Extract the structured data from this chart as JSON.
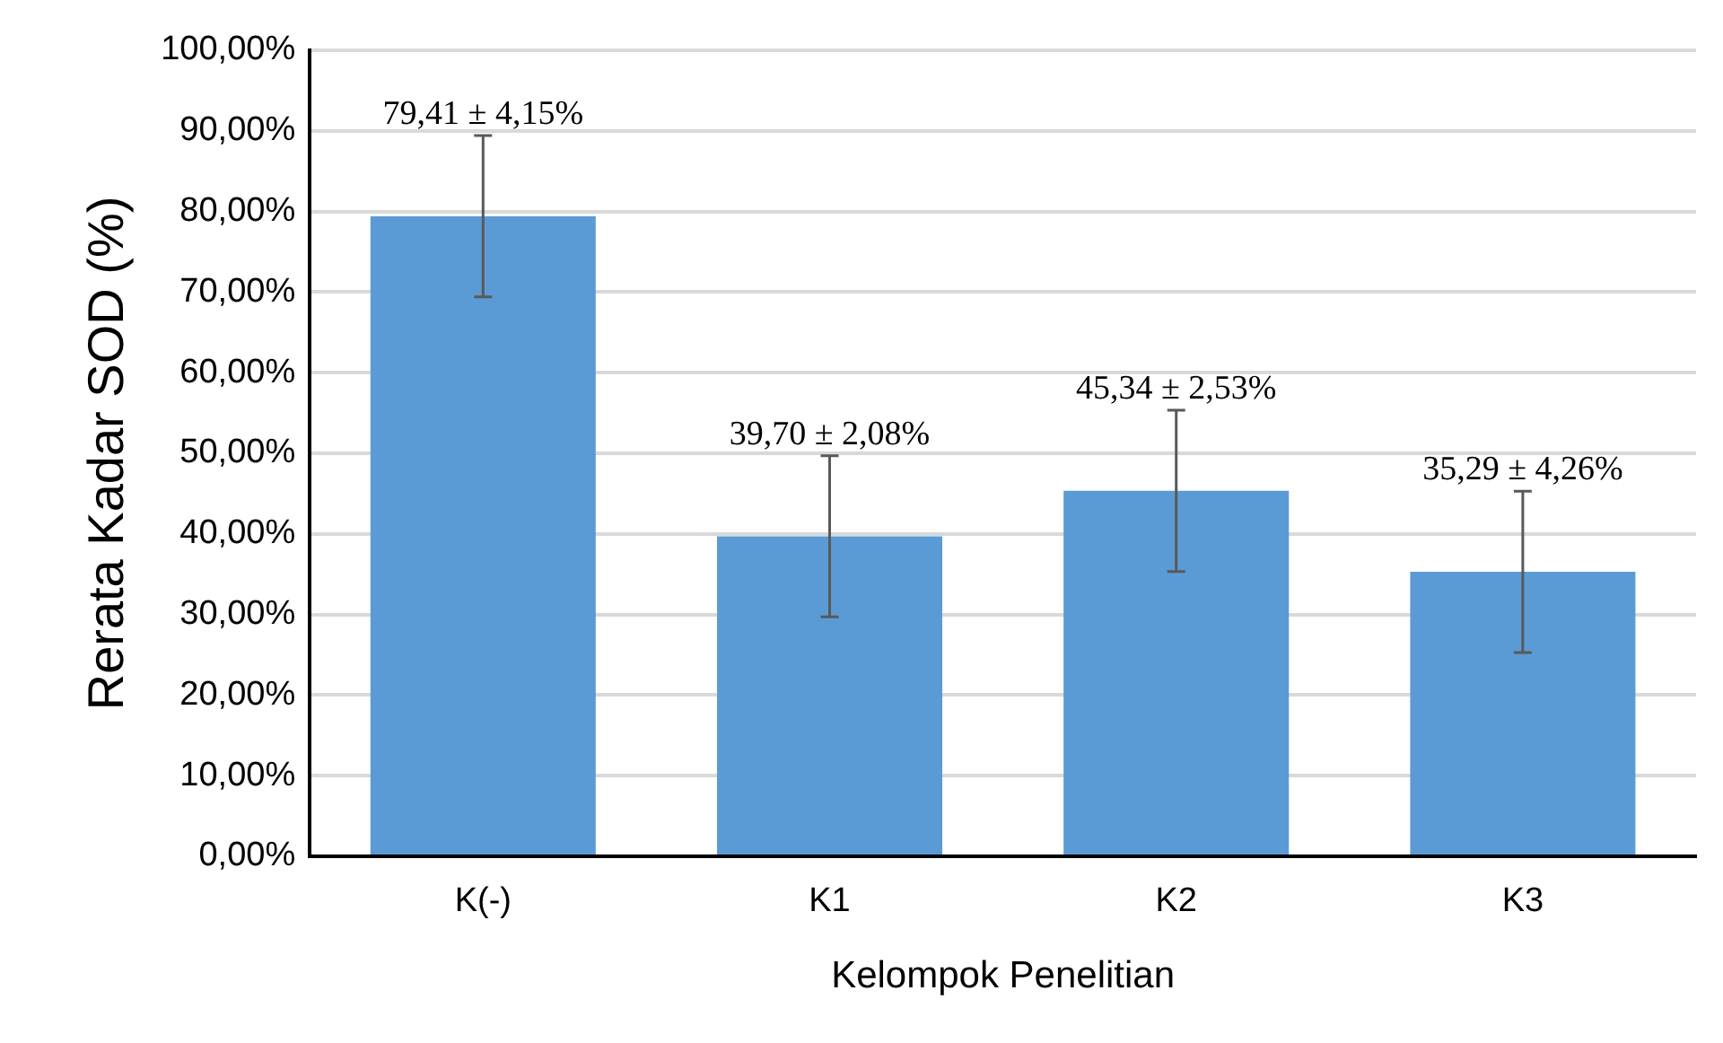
{
  "chart_data": {
    "type": "bar",
    "xlabel": "Kelompok Penelitian",
    "ylabel": "Rerata Kadar SOD (%)",
    "categories": [
      "K(-)",
      "K1",
      "K2",
      "K3"
    ],
    "values": [
      79.41,
      39.7,
      45.34,
      35.29
    ],
    "errors": [
      10,
      10,
      10,
      10
    ],
    "value_labels": [
      "79,41 ± 4,15%",
      "39,70 ± 2,08%",
      "45,34 ± 2,53%",
      "35,29 ± 4,26%"
    ],
    "color": "#5b9bd5",
    "ylim": [
      0,
      100
    ],
    "yticks": [
      {
        "value": 0,
        "label": "0,00%"
      },
      {
        "value": 10,
        "label": "10,00%"
      },
      {
        "value": 20,
        "label": "20,00%"
      },
      {
        "value": 30,
        "label": "30,00%"
      },
      {
        "value": 40,
        "label": "40,00%"
      },
      {
        "value": 50,
        "label": "50,00%"
      },
      {
        "value": 60,
        "label": "60,00%"
      },
      {
        "value": 70,
        "label": "70,00%"
      },
      {
        "value": 80,
        "label": "80,00%"
      },
      {
        "value": 90,
        "label": "90,00%"
      },
      {
        "value": 100,
        "label": "100,00%"
      }
    ],
    "grid": "y",
    "legend": false
  }
}
